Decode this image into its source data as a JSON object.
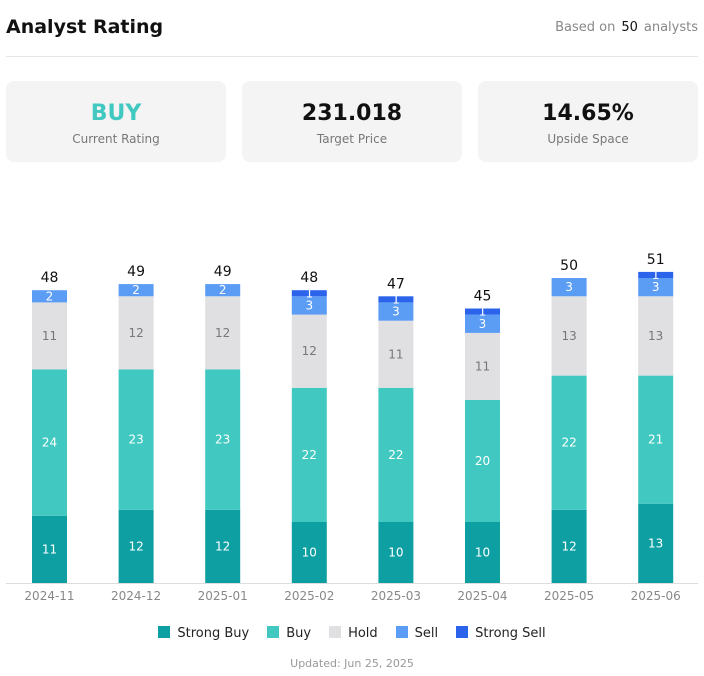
{
  "header": {
    "title": "Analyst Rating",
    "based_prefix": "Based on",
    "analyst_count": "50",
    "based_suffix": "analysts"
  },
  "cards": [
    {
      "value": "BUY",
      "label": "Current Rating"
    },
    {
      "value": "231.018",
      "label": "Target Price"
    },
    {
      "value": "14.65%",
      "label": "Upside Space"
    }
  ],
  "chart_data": {
    "type": "bar",
    "stacked": true,
    "categories": [
      "2024-11",
      "2024-12",
      "2025-01",
      "2025-02",
      "2025-03",
      "2025-04",
      "2025-05",
      "2025-06"
    ],
    "totals": [
      48,
      49,
      49,
      48,
      47,
      45,
      50,
      51
    ],
    "series": [
      {
        "name": "Strong Buy",
        "color": "#0e9fa3",
        "values": [
          11,
          12,
          12,
          10,
          10,
          10,
          12,
          13
        ]
      },
      {
        "name": "Buy",
        "color": "#41c9c1",
        "values": [
          24,
          23,
          23,
          22,
          22,
          20,
          22,
          21
        ]
      },
      {
        "name": "Hold",
        "color": "#e0e0e2",
        "values": [
          11,
          12,
          12,
          12,
          11,
          11,
          13,
          13
        ]
      },
      {
        "name": "Sell",
        "color": "#5b9cf5",
        "values": [
          2,
          2,
          2,
          3,
          3,
          3,
          3,
          3
        ]
      },
      {
        "name": "Strong Sell",
        "color": "#2b64ea",
        "values": [
          0,
          0,
          0,
          1,
          1,
          1,
          0,
          1
        ]
      }
    ],
    "legend": "bottom",
    "grid": false
  },
  "footer": {
    "updated": "Updated: Jun 25, 2025"
  }
}
